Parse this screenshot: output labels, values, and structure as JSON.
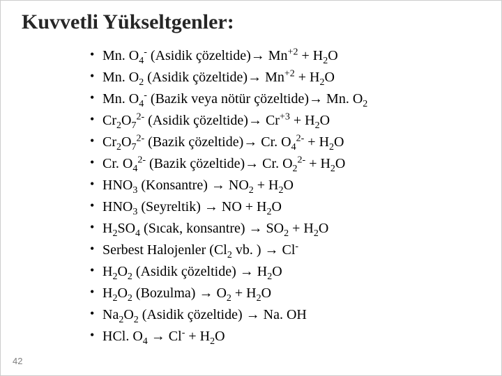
{
  "slide": {
    "title": "Kuvvetli Yükseltgenler:",
    "page_number": "42",
    "title_color": "#262626",
    "text_color": "#000000",
    "pagenum_color": "#7f7f7f",
    "background": "#ffffff",
    "title_fontsize": 30,
    "body_fontsize": 20,
    "bullets": [
      {
        "html": "Mn. O<sub>4</sub><sup>-</sup> (Asidik çözeltide)<span class='arrow'>→</span> Mn<sup>+2</sup> + H<sub>2</sub>O"
      },
      {
        "html": "Mn. O<sub>2</sub> (Asidik çözeltide)<span class='arrow'>→</span> Mn<sup>+2</sup> + H<sub>2</sub>O"
      },
      {
        "html": "Mn. O<sub>4</sub><sup>-</sup> (Bazik veya nötür çözeltide)<span class='arrow'>→</span> Mn. O<sub>2</sub>"
      },
      {
        "html": "Cr<sub>2</sub>O<sub>7</sub><sup>2-</sup> (Asidik çözeltide)<span class='arrow'>→</span> Cr<sup>+3</sup> + H<sub>2</sub>O"
      },
      {
        "html": "Cr<sub>2</sub>O<sub>7</sub><sup>2-</sup> (Bazik çözeltide)<span class='arrow'>→</span> Cr. O<sub>4</sub><sup>2-</sup> + H<sub>2</sub>O"
      },
      {
        "html": "Cr. O<sub>4</sub><sup>2-</sup> (Bazik çözeltide)<span class='arrow'>→</span> Cr. O<sub>2</sub><sup>2-</sup> + H<sub>2</sub>O"
      },
      {
        "html": "HNO<sub>3</sub> (Konsantre) <span class='arrow'>→</span> NO<sub>2</sub> + H<sub>2</sub>O"
      },
      {
        "html": "HNO<sub>3</sub> (Seyreltik) <span class='arrow'>→</span> NO + H<sub>2</sub>O"
      },
      {
        "html": "H<sub>2</sub>SO<sub>4</sub> (Sıcak, konsantre) <span class='arrow'>→</span> SO<sub>2</sub> + H<sub>2</sub>O"
      },
      {
        "html": "Serbest Halojenler (Cl<sub>2</sub> vb. ) <span class='arrow'>→</span> Cl<sup>-</sup>"
      },
      {
        "html": "H<sub>2</sub>O<sub>2</sub> (Asidik çözeltide) <span class='arrow'>→</span> H<sub>2</sub>O"
      },
      {
        "html": "H<sub>2</sub>O<sub>2</sub> (Bozulma) <span class='arrow'>→</span> O<sub>2</sub> + H<sub>2</sub>O"
      },
      {
        "html": "Na<sub>2</sub>O<sub>2</sub> (Asidik çözeltide) <span class='arrow'>→</span> Na. OH"
      },
      {
        "html": "HCl. O<sub>4</sub> <span class='arrow'>→</span> Cl<sup>-</sup> + H<sub>2</sub>O"
      }
    ]
  }
}
